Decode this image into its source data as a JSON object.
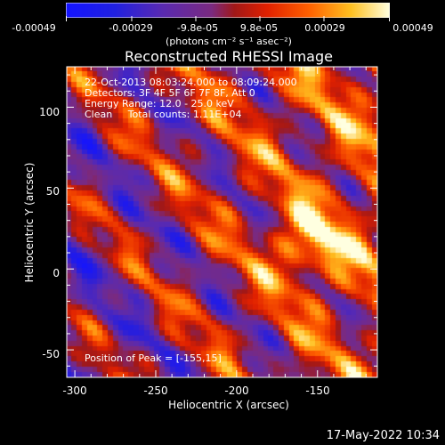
{
  "colorbar": {
    "ticks": [
      "-0.00049",
      "-0.00029",
      "-9.8e-05",
      "9.8e-05",
      "0.00029",
      "0.00049"
    ],
    "unit_label": "(photons cm⁻² s⁻¹ asec⁻²)",
    "range": [
      -0.00049,
      0.00049
    ]
  },
  "chart_data": {
    "type": "heatmap",
    "title": "Reconstructed RHESSI Image",
    "xlabel": "Heliocentric X (arcsec)",
    "ylabel": "Heliocentric Y (arcsec)",
    "xlim": [
      -305,
      -113
    ],
    "ylim": [
      -67,
      125
    ],
    "x_ticks": [
      -300,
      -250,
      -200,
      -150
    ],
    "y_ticks": [
      100,
      50,
      0,
      -50
    ],
    "x_tick_labels": [
      "-300",
      "-250",
      "-200",
      "-150"
    ],
    "y_tick_labels": [
      "100",
      "50",
      "0",
      "-50"
    ],
    "peak_position": [
      -155,
      15
    ],
    "colormap": "rhessi-blue-purple-red-yellow-white"
  },
  "annotations": {
    "time_range": "22-Oct-2013 08:03:24.000 to 08:09:24.000",
    "detectors": "Detectors: 3F 4F 5F 6F 7F 8F, Att 0",
    "energy_range": "Energy Range: 12.0 - 25.0 keV",
    "clean_counts": "Clean     Total counts: 1.11E+04",
    "peak_position": "Position of Peak = [-155,15]"
  },
  "footer": {
    "timestamp": "17-May-2022 10:34"
  }
}
